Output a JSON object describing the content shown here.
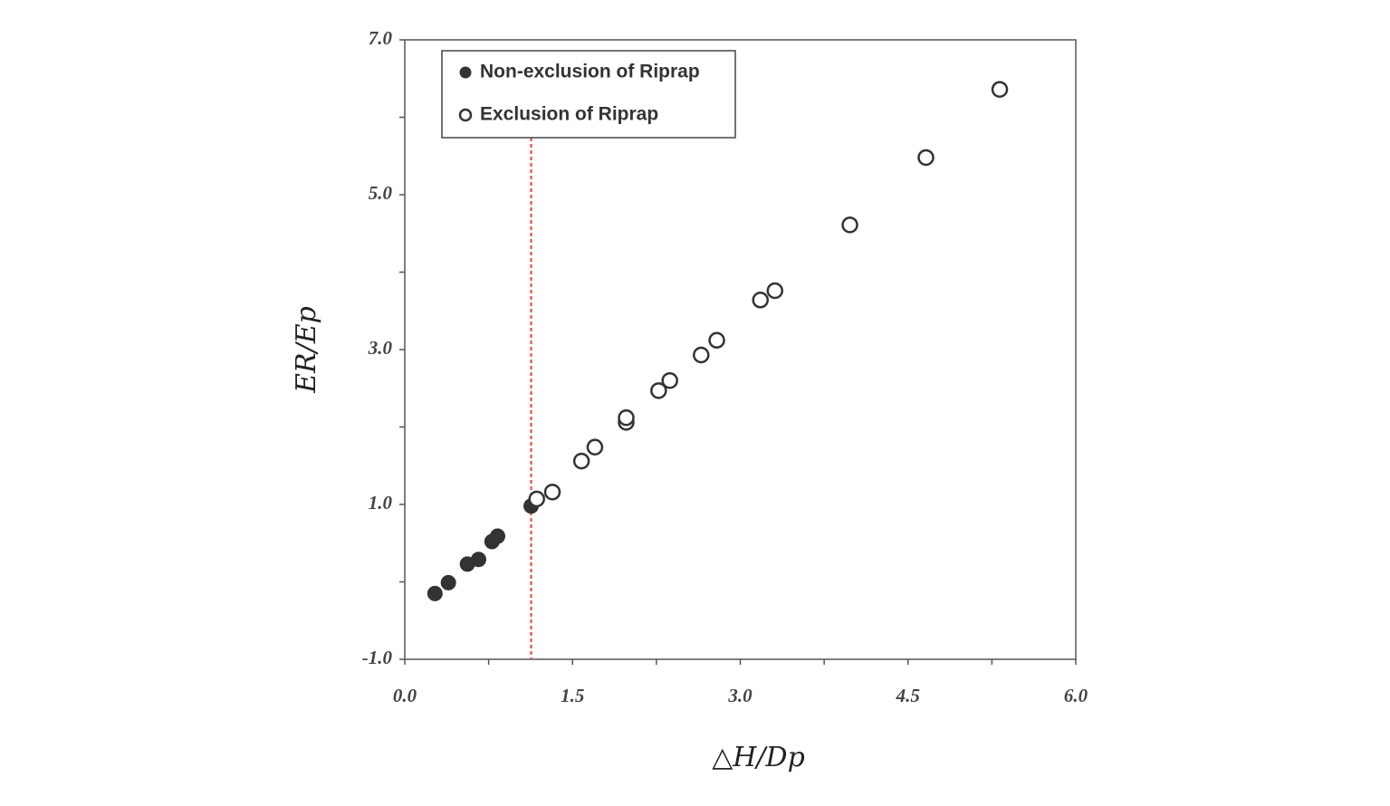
{
  "chart_data": {
    "type": "scatter",
    "x_label": "△H/Dp",
    "y_label": "ER/Ep",
    "xlim": [
      0,
      6
    ],
    "ylim": [
      -1,
      7
    ],
    "xticks": [
      {
        "value": 0,
        "label": "0.0"
      },
      {
        "value": 1.5,
        "label": "1.5"
      },
      {
        "value": 3,
        "label": "3.0"
      },
      {
        "value": 4.5,
        "label": "4.5"
      },
      {
        "value": 6,
        "label": "6.0"
      }
    ],
    "x_minor_ticks": [
      0.75,
      2.25,
      3.75,
      5.25
    ],
    "yticks": [
      {
        "value": -1,
        "label": "-1.0"
      },
      {
        "value": 1,
        "label": "1.0"
      },
      {
        "value": 3,
        "label": "3.0"
      },
      {
        "value": 5,
        "label": "5.0"
      },
      {
        "value": 7,
        "label": "7.0"
      }
    ],
    "y_minor_ticks": [
      0,
      2,
      4,
      6
    ],
    "reference_line": {
      "x": 1.13,
      "color": "#e8403a"
    },
    "legend": "upper left",
    "series": [
      {
        "name": "Non-exclusion of Riprap",
        "color": "#333333",
        "marker": "filled",
        "x": [
          0.27,
          0.39,
          0.56,
          0.66,
          0.78,
          0.83,
          1.13
        ],
        "values": [
          -0.15,
          -0.01,
          0.23,
          0.29,
          0.52,
          0.59,
          0.98
        ]
      },
      {
        "name": "Exclusion of Riprap",
        "color": "#333333",
        "marker": "open",
        "x": [
          1.18,
          1.32,
          1.58,
          1.7,
          1.98,
          1.98,
          2.27,
          2.37,
          2.65,
          2.79,
          3.18,
          3.31,
          3.98,
          4.66,
          5.32
        ],
        "values": [
          1.07,
          1.16,
          1.56,
          1.74,
          2.06,
          2.12,
          2.47,
          2.6,
          2.93,
          3.12,
          3.64,
          3.76,
          4.61,
          5.48,
          6.36
        ]
      }
    ]
  }
}
